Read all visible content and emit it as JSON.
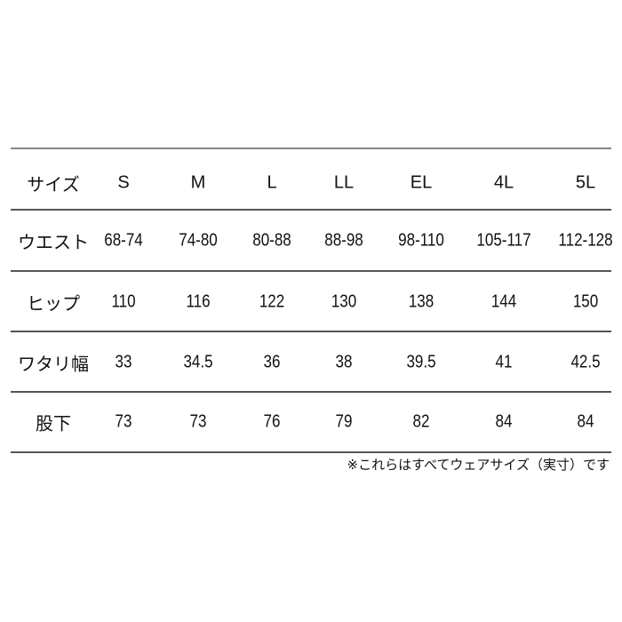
{
  "table": {
    "headers": [
      "サイズ",
      "S",
      "M",
      "L",
      "LL",
      "EL",
      "4L",
      "5L"
    ],
    "rows": [
      {
        "label": "ウエスト",
        "values": [
          "68-74",
          "74-80",
          "80-88",
          "88-98",
          "98-110",
          "105-117",
          "112-128"
        ]
      },
      {
        "label": "ヒップ",
        "values": [
          "110",
          "116",
          "122",
          "130",
          "138",
          "144",
          "150"
        ]
      },
      {
        "label": "ワタリ幅",
        "values": [
          "33",
          "34.5",
          "36",
          "38",
          "39.5",
          "41",
          "42.5"
        ]
      },
      {
        "label": "股下",
        "values": [
          "73",
          "73",
          "76",
          "79",
          "82",
          "84",
          "84"
        ]
      }
    ]
  },
  "footnote": "※これらはすべてウェアサイズ（実寸）です"
}
